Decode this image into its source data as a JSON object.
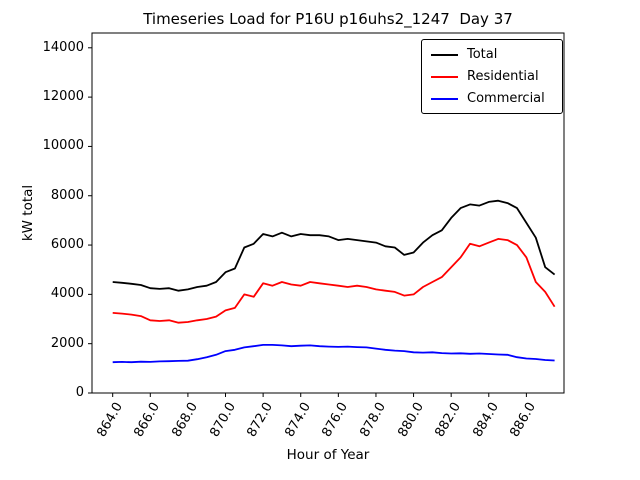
{
  "chart_data": {
    "type": "line",
    "title": "Timeseries Load for P16U p16uhs2_1247  Day 37",
    "xlabel": "Hour of Year",
    "ylabel": "kW total",
    "grid": false,
    "legend_position": "upper right",
    "xlim": [
      862.9,
      888.0
    ],
    "ylim": [
      0,
      14600
    ],
    "xticks": [
      864,
      866,
      868,
      870,
      872,
      874,
      876,
      878,
      880,
      882,
      884,
      886
    ],
    "xtick_labels": [
      "864.0",
      "866.0",
      "868.0",
      "870.0",
      "872.0",
      "874.0",
      "876.0",
      "878.0",
      "880.0",
      "882.0",
      "884.0",
      "886.0"
    ],
    "yticks": [
      0,
      2000,
      4000,
      6000,
      8000,
      10000,
      12000,
      14000
    ],
    "ytick_labels": [
      "0",
      "2000",
      "4000",
      "6000",
      "8000",
      "10000",
      "12000",
      "14000"
    ],
    "x": [
      864.0,
      864.5,
      865.0,
      865.5,
      866.0,
      866.5,
      867.0,
      867.5,
      868.0,
      868.5,
      869.0,
      869.5,
      870.0,
      870.5,
      871.0,
      871.5,
      872.0,
      872.5,
      873.0,
      873.5,
      874.0,
      874.5,
      875.0,
      875.5,
      876.0,
      876.5,
      877.0,
      877.5,
      878.0,
      878.5,
      879.0,
      879.5,
      880.0,
      880.5,
      881.0,
      881.5,
      882.0,
      882.5,
      883.0,
      883.5,
      884.0,
      884.5,
      885.0,
      885.5,
      886.0,
      886.5,
      887.0,
      887.5
    ],
    "series": [
      {
        "name": "Total",
        "color": "#000000",
        "values": [
          4500,
          4470,
          4430,
          4380,
          4250,
          4220,
          4250,
          4150,
          4200,
          4300,
          4350,
          4500,
          4900,
          5050,
          5900,
          6050,
          6450,
          6350,
          6500,
          6350,
          6450,
          6400,
          6400,
          6350,
          6200,
          6250,
          6200,
          6150,
          6100,
          5950,
          5900,
          5600,
          5700,
          6100,
          6400,
          6600,
          7100,
          7500,
          7650,
          7600,
          7750,
          7800,
          7700,
          7500,
          6900,
          6300,
          5100,
          4800
        ]
      },
      {
        "name": "Residential",
        "color": "#ff0000",
        "values": [
          3250,
          3220,
          3180,
          3120,
          2950,
          2920,
          2950,
          2850,
          2880,
          2950,
          3000,
          3100,
          3350,
          3450,
          4000,
          3900,
          4450,
          4350,
          4500,
          4400,
          4350,
          4500,
          4450,
          4400,
          4350,
          4300,
          4350,
          4300,
          4200,
          4150,
          4100,
          3950,
          4000,
          4300,
          4500,
          4700,
          5100,
          5500,
          6050,
          5950,
          6100,
          6250,
          6200,
          6000,
          5500,
          4500,
          4100,
          3500
        ]
      },
      {
        "name": "Commercial",
        "color": "#0000ff",
        "values": [
          1250,
          1260,
          1250,
          1270,
          1260,
          1280,
          1290,
          1300,
          1310,
          1370,
          1450,
          1550,
          1700,
          1750,
          1850,
          1900,
          1950,
          1950,
          1930,
          1900,
          1920,
          1930,
          1900,
          1880,
          1870,
          1880,
          1860,
          1850,
          1800,
          1750,
          1720,
          1700,
          1650,
          1640,
          1650,
          1620,
          1600,
          1610,
          1590,
          1600,
          1580,
          1560,
          1550,
          1450,
          1400,
          1380,
          1340,
          1320
        ]
      }
    ]
  }
}
